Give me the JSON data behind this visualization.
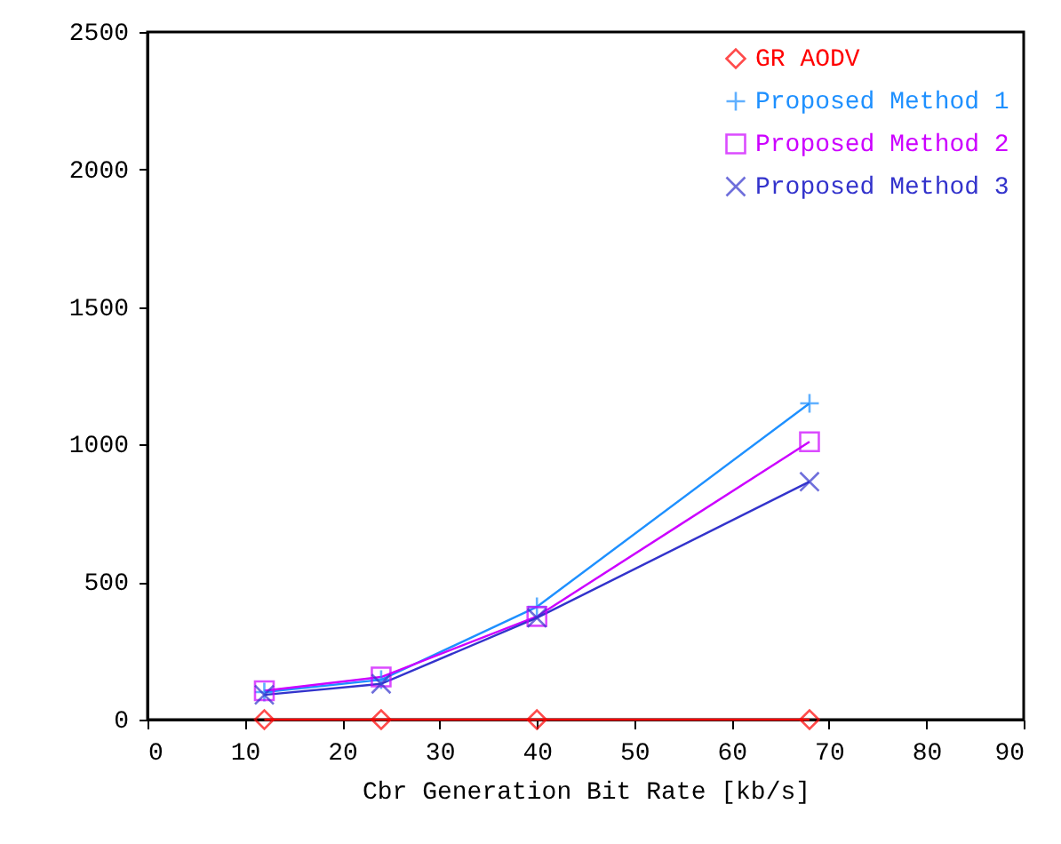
{
  "chart_data": {
    "type": "line",
    "xlabel": "Cbr Generation Bit Rate [kb/s]",
    "x": [
      12,
      24,
      40,
      68
    ],
    "xlim": [
      0,
      90
    ],
    "xticks": [
      0,
      10,
      20,
      30,
      40,
      50,
      60,
      70,
      80,
      90
    ],
    "ylim": [
      0,
      2500
    ],
    "yticks": [
      0,
      500,
      1000,
      1500,
      2000,
      2500
    ],
    "grid": false,
    "legend": "top right",
    "line_style": "solid",
    "series": [
      {
        "name": "GR AODV",
        "color": "#ff0000",
        "marker": "diamond",
        "values": [
          0,
          0,
          0,
          0
        ]
      },
      {
        "name": "Proposed Method 1",
        "color": "#1e90ff",
        "marker": "cross",
        "values": [
          100,
          145,
          410,
          1150
        ]
      },
      {
        "name": "Proposed Method 2",
        "color": "#cc00ff",
        "marker": "square",
        "values": [
          105,
          155,
          375,
          1010
        ]
      },
      {
        "name": "Proposed Method 3",
        "color": "#3333cc",
        "marker": "x",
        "values": [
          90,
          130,
          370,
          865
        ]
      }
    ]
  }
}
